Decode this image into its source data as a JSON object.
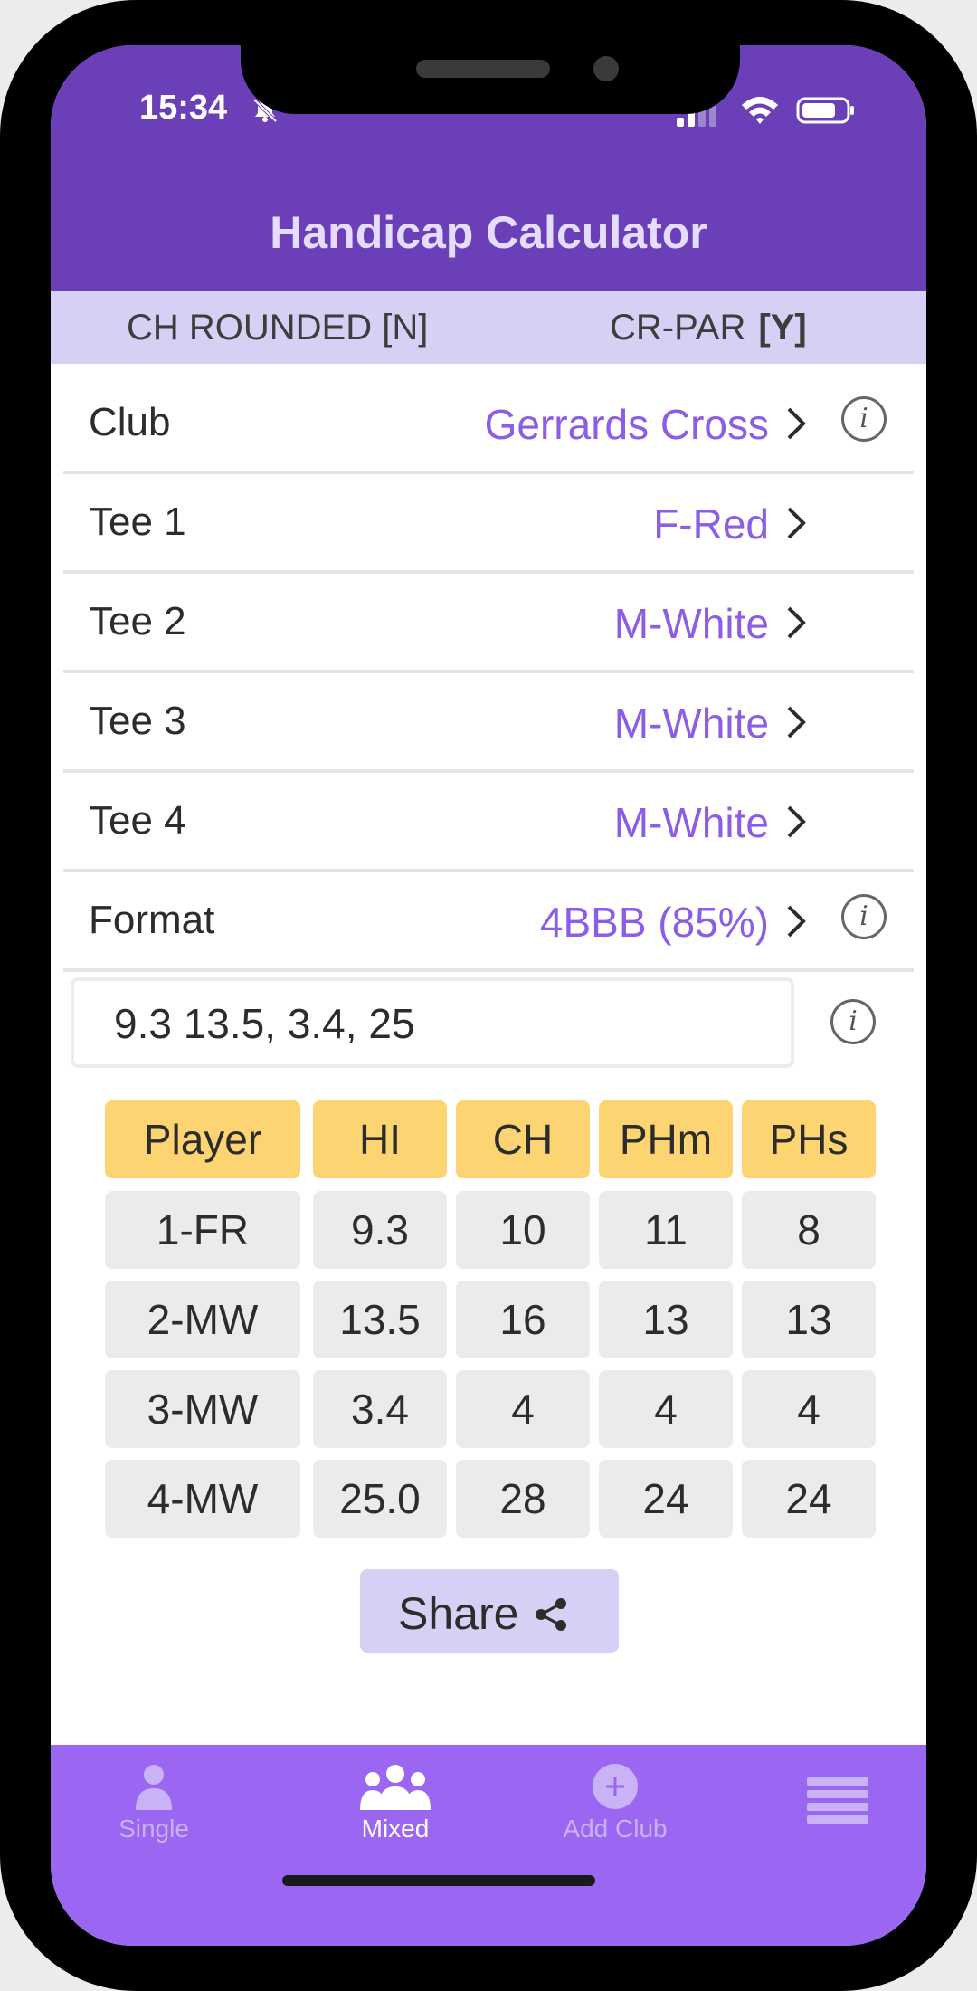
{
  "status": {
    "time": "15:34"
  },
  "header": {
    "title": "Handicap Calculator"
  },
  "subbar": {
    "left": "CH ROUNDED [N]",
    "right_prefix": "CR-PAR",
    "right_flag": "[Y]"
  },
  "rows": [
    {
      "label": "Club",
      "value": "Gerrards Cross",
      "info": true
    },
    {
      "label": "Tee 1",
      "value": "F-Red",
      "info": false
    },
    {
      "label": "Tee 2",
      "value": "M-White",
      "info": false
    },
    {
      "label": "Tee 3",
      "value": "M-White",
      "info": false
    },
    {
      "label": "Tee 4",
      "value": "M-White",
      "info": false
    },
    {
      "label": "Format",
      "value": "4BBB (85%)",
      "info": true
    }
  ],
  "entry": {
    "value": "9.3 13.5, 3.4, 25"
  },
  "info_glyph": "i",
  "table": {
    "headers": [
      "Player",
      "HI",
      "CH",
      "PHm",
      "PHs"
    ],
    "rows": [
      [
        "1-FR",
        "9.3",
        "10",
        "11",
        "8"
      ],
      [
        "2-MW",
        "13.5",
        "16",
        "13",
        "13"
      ],
      [
        "3-MW",
        "3.4",
        "4",
        "4",
        "4"
      ],
      [
        "4-MW",
        "25.0",
        "28",
        "24",
        "24"
      ]
    ]
  },
  "share": {
    "label": "Share"
  },
  "tabs": [
    {
      "label": "Single",
      "icon": "person-icon",
      "active": false
    },
    {
      "label": "Mixed",
      "icon": "group-icon",
      "active": true
    },
    {
      "label": "Add Club",
      "icon": "add-circle-icon",
      "active": false
    },
    {
      "label": "",
      "icon": "menu-icon",
      "active": false
    }
  ],
  "colors": {
    "header": "#6a3fb8",
    "accent_value": "#8c5de6",
    "subbar": "#d6d0f4",
    "table_header": "#fcd572",
    "tabbar": "#9a66f2"
  }
}
